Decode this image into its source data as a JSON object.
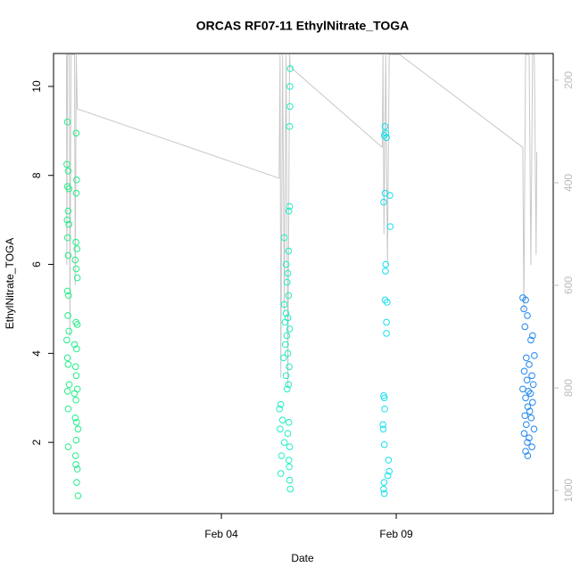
{
  "chart_data": {
    "type": "scatter",
    "title": "ORCAS RF07-11 EthylNitrate_TOGA",
    "x_label": "Date",
    "y_label": "EthylNitrate_TOGA",
    "xlim": [
      -0.8,
      13.49
    ],
    "xticks": [
      {
        "value": 4,
        "label": "Feb 04"
      },
      {
        "value": 9,
        "label": "Feb 09"
      }
    ],
    "ylim": [
      0.4,
      10.74
    ],
    "yticks": [
      2,
      4,
      6,
      8,
      10
    ],
    "y2lim": [
      1045,
      148
    ],
    "y2ticks": [
      200,
      400,
      600,
      800,
      1000
    ],
    "y2color": "#bbbbbb",
    "series": [
      {
        "color": "#22ee88",
        "x": [
          -0.4,
          -0.15,
          -0.42,
          -0.38,
          -0.14,
          -0.4,
          -0.36,
          -0.15,
          -0.38,
          -0.41,
          -0.36,
          -0.4,
          -0.16,
          -0.13,
          -0.38,
          -0.18,
          -0.15,
          -0.12,
          -0.4,
          -0.37,
          -0.39,
          -0.16,
          -0.12,
          -0.36,
          -0.42,
          -0.2,
          -0.14,
          -0.4,
          -0.38,
          -0.17,
          -0.15,
          -0.35,
          -0.12,
          -0.4,
          -0.2,
          -0.16,
          -0.38,
          -0.18,
          -0.14,
          -0.1,
          -0.15,
          -0.38,
          -0.17,
          -0.16,
          -0.12,
          -0.14,
          -0.1
        ],
        "values": [
          9.2,
          8.95,
          8.25,
          8.1,
          7.9,
          7.75,
          7.7,
          7.6,
          7.2,
          7.0,
          6.9,
          6.6,
          6.5,
          6.35,
          6.2,
          6.1,
          5.9,
          5.7,
          5.4,
          5.3,
          4.85,
          4.7,
          4.65,
          4.5,
          4.3,
          4.2,
          4.1,
          3.9,
          3.75,
          3.7,
          3.5,
          3.3,
          3.2,
          3.15,
          3.1,
          2.95,
          2.75,
          2.55,
          2.45,
          2.3,
          2.05,
          1.9,
          1.7,
          1.5,
          1.4,
          1.1,
          0.8
        ]
      },
      {
        "color": "#1eeec4",
        "x": [
          5.97,
          5.96,
          5.96,
          5.95,
          5.95,
          5.93,
          5.8,
          5.92,
          5.85,
          5.9,
          5.88,
          5.92,
          5.8,
          5.85,
          5.9,
          5.82,
          5.95,
          5.87,
          5.83,
          5.9,
          5.78,
          5.94,
          5.85,
          5.92,
          5.88,
          5.7,
          5.66,
          5.75,
          5.93,
          5.68,
          5.9,
          5.8,
          5.95,
          5.72,
          5.93,
          5.94,
          5.7,
          5.95,
          5.97
        ],
        "values": [
          10.4,
          10.0,
          9.55,
          9.1,
          7.3,
          7.2,
          6.6,
          6.3,
          6.0,
          5.8,
          5.6,
          5.3,
          5.1,
          4.9,
          4.8,
          4.7,
          4.55,
          4.4,
          4.2,
          4.0,
          3.9,
          3.7,
          3.5,
          3.3,
          3.2,
          2.85,
          2.75,
          2.5,
          2.45,
          2.3,
          2.2,
          2.0,
          1.9,
          1.7,
          1.6,
          1.45,
          1.3,
          1.15,
          0.95
        ]
      },
      {
        "color": "#14e0ee",
        "x": [
          8.68,
          8.7,
          8.66,
          8.72,
          8.68,
          8.82,
          8.64,
          8.83,
          8.7,
          8.69,
          8.68,
          8.74,
          8.72,
          8.72,
          8.64,
          8.66,
          8.67,
          8.62,
          8.63,
          8.66,
          8.78,
          8.8,
          8.76,
          8.65,
          8.64,
          8.66
        ],
        "values": [
          9.1,
          8.95,
          8.9,
          8.85,
          7.6,
          7.55,
          7.4,
          6.85,
          6.0,
          5.85,
          5.2,
          5.15,
          4.7,
          4.45,
          3.05,
          3.0,
          2.75,
          2.4,
          2.3,
          1.95,
          1.6,
          1.35,
          1.25,
          1.1,
          0.95,
          0.85
        ]
      },
      {
        "color": "#1e86f0",
        "x": [
          12.62,
          12.7,
          12.65,
          12.75,
          12.68,
          12.9,
          12.85,
          12.95,
          12.72,
          12.8,
          12.66,
          12.88,
          12.74,
          12.92,
          12.62,
          12.78,
          12.84,
          12.7,
          12.9,
          12.76,
          12.82,
          12.68,
          12.86,
          12.72,
          12.94,
          12.66,
          12.8,
          12.75,
          12.88,
          12.7,
          12.76
        ],
        "values": [
          5.25,
          5.2,
          5.0,
          4.85,
          4.6,
          4.4,
          4.3,
          3.95,
          3.9,
          3.75,
          3.6,
          3.5,
          3.4,
          3.3,
          3.2,
          3.15,
          3.1,
          3.0,
          2.9,
          2.8,
          2.7,
          2.6,
          2.55,
          2.4,
          2.3,
          2.2,
          2.1,
          2.0,
          1.9,
          1.8,
          1.7
        ]
      },
      {
        "type": "line",
        "axis": "y2",
        "color": "#c8c8c8",
        "x": [
          -0.43,
          -0.42,
          -0.4,
          -0.35,
          -0.33,
          -0.3,
          -0.2,
          -0.18,
          -0.15,
          -0.12,
          5.65,
          5.68,
          5.7,
          5.75,
          5.8,
          5.85,
          5.9,
          5.95,
          5.97,
          8.6,
          8.62,
          8.65,
          8.7,
          8.75,
          8.8,
          8.82,
          9.1,
          12.62,
          12.65,
          12.7,
          12.8,
          12.85,
          12.9,
          12.95,
          13.0,
          13.02
        ],
        "values": [
          150,
          560,
          150,
          150,
          700,
          150,
          150,
          600,
          150,
          256,
          391,
          150,
          780,
          150,
          650,
          150,
          800,
          150,
          174,
          331,
          150,
          500,
          150,
          560,
          150,
          150,
          150,
          331,
          650,
          150,
          150,
          560,
          150,
          150,
          540,
          340
        ]
      }
    ]
  }
}
